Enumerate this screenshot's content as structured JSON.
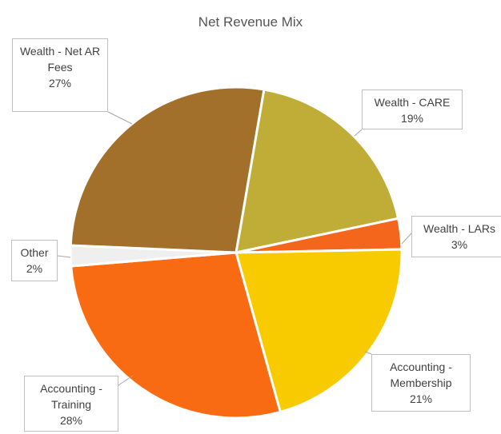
{
  "chart_data": {
    "type": "pie",
    "title": "Net Revenue Mix",
    "categories": [
      "Wealth - CARE",
      "Wealth - LARs",
      "Accounting - Membership",
      "Accounting - Training",
      "Other",
      "Wealth - Net AR Fees"
    ],
    "values": [
      19,
      3,
      21,
      28,
      2,
      27
    ],
    "value_labels": [
      "19%",
      "3%",
      "21%",
      "28%",
      "2%",
      "27%"
    ],
    "colors": [
      "#c0ad38",
      "#f4661b",
      "#f8cb00",
      "#f96b12",
      "#efefef",
      "#a2702b"
    ]
  }
}
